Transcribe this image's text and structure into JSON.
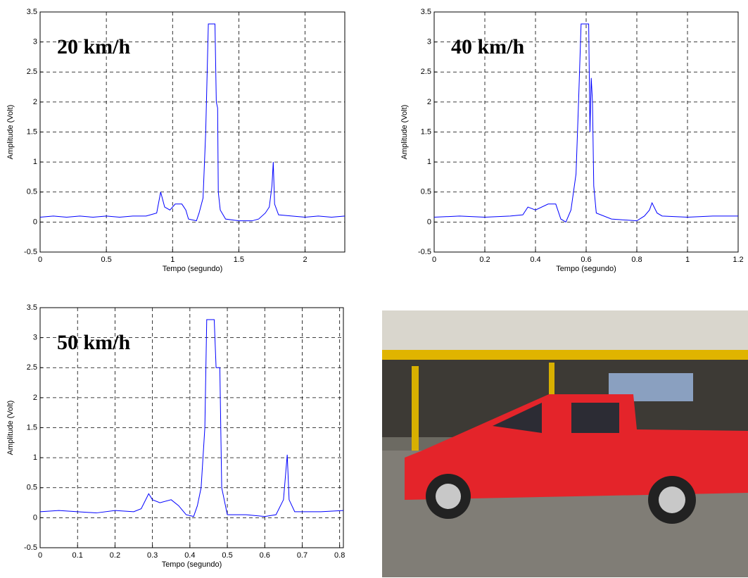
{
  "chart_data": [
    {
      "type": "line",
      "annotation": "20 km/h",
      "xlabel": "Tempo (segundo)",
      "ylabel": "Amplitude (Volt)",
      "color": "#0000ff",
      "grid": true,
      "xlim": [
        0,
        2.3
      ],
      "xticks": [
        0,
        0.5,
        1,
        1.5,
        2
      ],
      "ylim": [
        -0.5,
        3.5
      ],
      "yticks": [
        -0.5,
        0,
        0.5,
        1,
        1.5,
        2,
        2.5,
        3,
        3.5
      ],
      "x": [
        0,
        0.1,
        0.2,
        0.3,
        0.4,
        0.5,
        0.6,
        0.7,
        0.8,
        0.88,
        0.91,
        0.94,
        0.98,
        1.02,
        1.07,
        1.1,
        1.12,
        1.18,
        1.2,
        1.23,
        1.25,
        1.27,
        1.32,
        1.33,
        1.34,
        1.345,
        1.36,
        1.4,
        1.5,
        1.6,
        1.65,
        1.7,
        1.73,
        1.75,
        1.76,
        1.77,
        1.8,
        1.9,
        2.0,
        2.1,
        2.2,
        2.3
      ],
      "values": [
        0.08,
        0.1,
        0.08,
        0.1,
        0.08,
        0.1,
        0.08,
        0.1,
        0.1,
        0.15,
        0.5,
        0.25,
        0.2,
        0.3,
        0.3,
        0.2,
        0.05,
        0.02,
        0.15,
        0.4,
        1.5,
        3.3,
        3.3,
        2.0,
        1.9,
        0.5,
        0.2,
        0.05,
        0.02,
        0.02,
        0.05,
        0.15,
        0.25,
        0.6,
        1.0,
        0.3,
        0.12,
        0.1,
        0.08,
        0.1,
        0.08,
        0.1
      ]
    },
    {
      "type": "line",
      "annotation": "40 km/h",
      "xlabel": "Tempo (segundo)",
      "ylabel": "Amplitude (Volt)",
      "color": "#0000ff",
      "grid": true,
      "xlim": [
        0,
        1.2
      ],
      "xticks": [
        0,
        0.2,
        0.4,
        0.6,
        0.8,
        1,
        1.2
      ],
      "ylim": [
        -0.5,
        3.5
      ],
      "yticks": [
        -0.5,
        0,
        0.5,
        1,
        1.5,
        2,
        2.5,
        3,
        3.5
      ],
      "x": [
        0,
        0.1,
        0.2,
        0.3,
        0.35,
        0.37,
        0.4,
        0.45,
        0.48,
        0.5,
        0.52,
        0.54,
        0.56,
        0.57,
        0.58,
        0.61,
        0.615,
        0.62,
        0.625,
        0.63,
        0.64,
        0.7,
        0.8,
        0.83,
        0.85,
        0.86,
        0.88,
        0.9,
        1.0,
        1.1,
        1.2
      ],
      "values": [
        0.08,
        0.1,
        0.08,
        0.1,
        0.12,
        0.25,
        0.2,
        0.3,
        0.3,
        0.05,
        0,
        0.2,
        0.8,
        2.0,
        3.3,
        3.3,
        1.5,
        2.4,
        2.0,
        0.6,
        0.15,
        0.05,
        0.02,
        0.1,
        0.2,
        0.32,
        0.15,
        0.1,
        0.08,
        0.1,
        0.1
      ]
    },
    {
      "type": "line",
      "annotation": "50 km/h",
      "xlabel": "Tempo (segundo)",
      "ylabel": "Amplitude (Volt)",
      "color": "#0000ff",
      "grid": true,
      "xlim": [
        0,
        0.81
      ],
      "xticks": [
        0,
        0.1,
        0.2,
        0.3,
        0.4,
        0.5,
        0.6,
        0.7,
        0.8
      ],
      "ylim": [
        -0.5,
        3.5
      ],
      "yticks": [
        -0.5,
        0,
        0.5,
        1,
        1.5,
        2,
        2.5,
        3,
        3.5
      ],
      "x": [
        0,
        0.05,
        0.1,
        0.15,
        0.2,
        0.25,
        0.27,
        0.29,
        0.3,
        0.32,
        0.35,
        0.37,
        0.39,
        0.41,
        0.42,
        0.43,
        0.44,
        0.445,
        0.465,
        0.47,
        0.48,
        0.485,
        0.5,
        0.55,
        0.6,
        0.63,
        0.65,
        0.66,
        0.665,
        0.68,
        0.75,
        0.81
      ],
      "values": [
        0.1,
        0.12,
        0.1,
        0.08,
        0.12,
        0.1,
        0.15,
        0.4,
        0.3,
        0.25,
        0.3,
        0.2,
        0.05,
        0.02,
        0.2,
        0.5,
        1.5,
        3.3,
        3.3,
        2.5,
        2.5,
        0.5,
        0.05,
        0.05,
        0.02,
        0.05,
        0.3,
        1.05,
        0.3,
        0.1,
        0.1,
        0.12
      ]
    }
  ]
}
